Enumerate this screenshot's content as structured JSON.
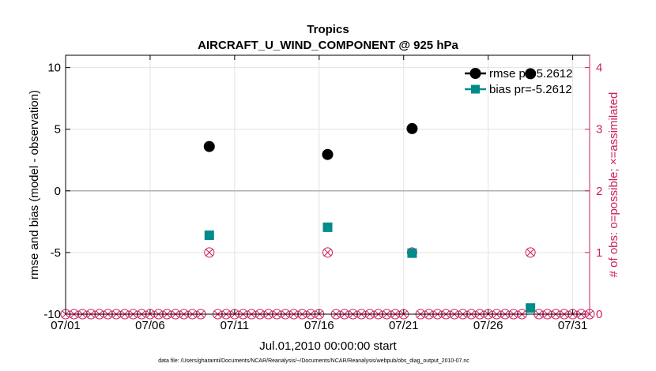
{
  "chart_data": {
    "type": "scatter",
    "title_line1": "Tropics",
    "title_line2": "AIRCRAFT_U_WIND_COMPONENT @ 925 hPa",
    "xlabel": "Jul.01,2010 00:00:00 start",
    "ylabel": "rmse and bias (model - observation)",
    "ylabel_right": "# of obs: o=possible; ×=assimilated",
    "footnote": "data file: /Users/gharamti/Documents/NCAR/Reanalysis/~/Documents/NCAR/Reanalysis/webpub/obs_diag_output_2010-07.nc",
    "xlim": [
      0,
      31
    ],
    "ylim": [
      -10,
      11
    ],
    "ylim_right": [
      0,
      4.2
    ],
    "x_tick_values": [
      0,
      5,
      10,
      15,
      20,
      25,
      30
    ],
    "x_tick_labels": [
      "07/01",
      "07/06",
      "07/11",
      "07/16",
      "07/21",
      "07/26",
      "07/31"
    ],
    "y_tick_values": [
      10,
      5,
      0,
      -5,
      -10
    ],
    "y_tick_labels": [
      "10",
      "5",
      "0",
      "-5",
      "-10"
    ],
    "y_right_tick_values": [
      4,
      3,
      2,
      1,
      0
    ],
    "y_right_tick_labels": [
      "4",
      "3",
      "2",
      "1",
      "0"
    ],
    "colors": {
      "rmse": "#000000",
      "bias": "#008b8b",
      "obs": "#cc1f5e",
      "grid": "#e3e3e3",
      "zero_line": "#b0b0b0"
    },
    "series": [
      {
        "name": "rmse",
        "legend": "rmse pr=5.2612",
        "marker": "circle",
        "points": [
          {
            "x": 8.5,
            "y": 3.6
          },
          {
            "x": 15.5,
            "y": 2.95
          },
          {
            "x": 20.5,
            "y": 5.05
          },
          {
            "x": 27.5,
            "y": 9.5
          }
        ]
      },
      {
        "name": "bias",
        "legend": "bias pr=-5.2612",
        "marker": "square",
        "points": [
          {
            "x": 8.5,
            "y": -3.6
          },
          {
            "x": 15.5,
            "y": -2.95
          },
          {
            "x": 20.5,
            "y": -5.05
          },
          {
            "x": 27.5,
            "y": -9.5
          }
        ]
      }
    ],
    "obs_counts": {
      "x": [
        8.5,
        15.5,
        20.5,
        27.5
      ],
      "possible": [
        1,
        1,
        1,
        1
      ],
      "assimilated": [
        1,
        1,
        1,
        1
      ],
      "zero_step": 0.5
    }
  }
}
